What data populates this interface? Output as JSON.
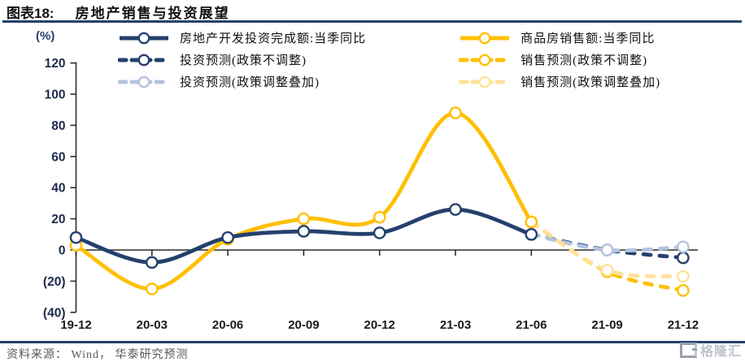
{
  "header": {
    "label": "图表18:",
    "title": "房地产销售与投资展望"
  },
  "footer": {
    "source": "资料来源： Wind， 华泰研究预测",
    "logo_text": "格隆汇"
  },
  "colors": {
    "navy": "#24406E",
    "yellow": "#FFBF00",
    "light_blue": "#B4C3DE",
    "light_yellow": "#FFE299",
    "axis_line": "#2b2b2b",
    "y_label": "#1c2b4a",
    "x_label": "#1b1b1b",
    "rule": "#24406E",
    "source_text": "#595959",
    "watermark": "#bfc4cd"
  },
  "chart_data": {
    "type": "line",
    "title": "房地产销售与投资展望",
    "unit_label": "(%)",
    "categories": [
      "19-12",
      "20-03",
      "20-06",
      "20-09",
      "20-12",
      "21-03",
      "21-06",
      "21-09",
      "21-12"
    ],
    "ylim": [
      -40,
      120
    ],
    "ytick_step": 20,
    "ytick_labels": [
      "(40)",
      "(20)",
      "0",
      "20",
      "40",
      "60",
      "80",
      "100",
      "120"
    ],
    "grid": false,
    "legend_position": "top",
    "series": [
      {
        "name": "房地产开发投资完成额:当季同比",
        "style": "solid",
        "color_key": "navy",
        "x": [
          0,
          1,
          2,
          3,
          4,
          5,
          6
        ],
        "values": [
          8,
          -8,
          8,
          12,
          11,
          26,
          10
        ]
      },
      {
        "name": "商品房销售额:当季同比",
        "style": "solid",
        "color_key": "yellow",
        "x": [
          0,
          1,
          2,
          3,
          4,
          5,
          6
        ],
        "values": [
          3,
          -25,
          7,
          20,
          21,
          88,
          18
        ]
      },
      {
        "name": "投资预测(政策不调整)",
        "style": "dashed",
        "color_key": "navy",
        "x": [
          6,
          7,
          8
        ],
        "values": [
          10,
          0,
          -5
        ]
      },
      {
        "name": "销售预测(政策不调整)",
        "style": "dashed",
        "color_key": "yellow",
        "x": [
          6,
          7,
          8
        ],
        "values": [
          18,
          -14,
          -26
        ]
      },
      {
        "name": "投资预测(政策调整叠加)",
        "style": "dashed",
        "color_key": "light_blue",
        "x": [
          6,
          7,
          8
        ],
        "values": [
          10,
          0,
          2
        ]
      },
      {
        "name": "销售预测(政策调整叠加)",
        "style": "dashed",
        "color_key": "light_yellow",
        "x": [
          6,
          7,
          8
        ],
        "values": [
          18,
          -13,
          -17
        ]
      }
    ]
  }
}
